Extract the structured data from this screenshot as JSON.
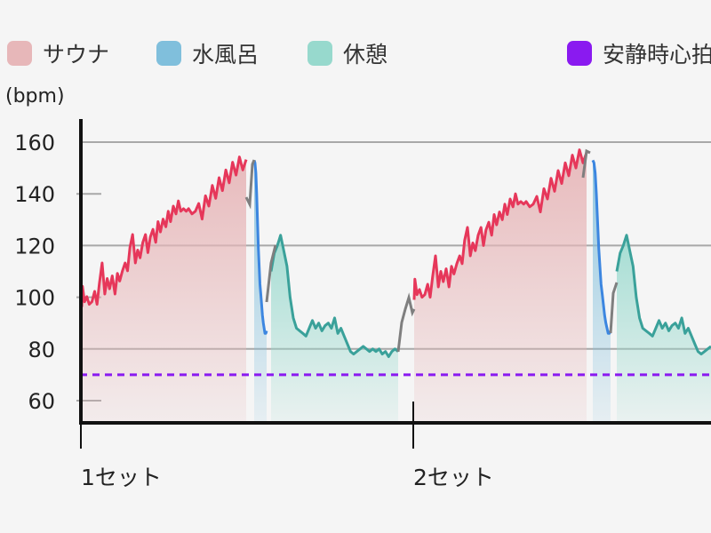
{
  "legend": [
    {
      "label": "サウナ",
      "color": "#e7b7b9"
    },
    {
      "label": "水風呂",
      "color": "#80bfdc"
    },
    {
      "label": "休憩",
      "color": "#97d9cd"
    },
    {
      "label": "安静時心拍",
      "color": "#8a1af0"
    }
  ],
  "chart_data": {
    "type": "line",
    "ylabel": "(bpm)",
    "ylim": [
      50,
      165
    ],
    "yticks": [
      60,
      80,
      100,
      120,
      140,
      160
    ],
    "x_categories": [
      "1セット",
      "2セット"
    ],
    "grid": true,
    "resting_heart_rate": 70,
    "series": [
      {
        "name": "サウナ",
        "color": "#e6375a",
        "fill": "#e7b7b9",
        "x": [
          0,
          0.2,
          0.8,
          1.5,
          2.2,
          3,
          3.8,
          4.5,
          5.2,
          6,
          6.8,
          7.5,
          8.2,
          9,
          9.8,
          10.5,
          11.2,
          12,
          12.8,
          13.5,
          14.2,
          15,
          15.8,
          16.5,
          17.2,
          18,
          18.8,
          19.5,
          20.2,
          21,
          21.8,
          22.5,
          23.2,
          24,
          24.8,
          25.5,
          26.2,
          27,
          27.8,
          28.5,
          29.2,
          30,
          30.8,
          31.5,
          32.5,
          33.5,
          34.5,
          35.5,
          36.5,
          37.5,
          38.5,
          39.5,
          40.5,
          41.5,
          42.5,
          43.5,
          44.5,
          45.5,
          46.5,
          47.5,
          48.5
        ],
        "y": [
          99,
          107,
          101,
          103,
          100,
          101,
          105,
          100,
          108,
          116,
          104,
          110,
          106,
          111,
          104,
          112,
          109,
          113,
          116,
          113,
          122,
          127,
          116,
          121,
          118,
          124,
          127,
          120,
          126,
          129,
          124,
          132,
          128,
          133,
          130,
          136,
          132,
          138,
          135,
          140,
          136,
          137,
          136,
          137,
          135,
          136,
          139,
          133,
          142,
          138,
          146,
          141,
          149,
          144,
          152,
          147,
          155,
          150,
          157,
          152,
          156
        ]
      },
      {
        "name": "水風呂",
        "color": "#3c86e0",
        "fill": "#80bfdc",
        "x": [
          0,
          1.2,
          2.4,
          3.6,
          4.8,
          6,
          7.2,
          8.4,
          9.6,
          10.8,
          12,
          13.2,
          14.4,
          15.6,
          16.8,
          18
        ],
        "y": [
          153,
          152,
          148,
          140,
          130,
          119,
          112,
          105,
          101,
          97,
          93,
          90,
          88,
          86,
          86,
          87
        ]
      },
      {
        "name": "休憩",
        "color": "#3aa19a",
        "fill": "#97d9cd",
        "x": [
          0,
          2,
          4,
          6,
          8,
          10,
          12,
          14,
          16,
          18,
          20,
          22,
          24,
          26,
          28,
          30,
          32,
          34,
          36,
          38,
          40,
          42,
          44,
          46,
          48,
          50,
          52,
          54,
          56,
          58,
          60,
          62,
          64,
          66,
          68,
          70,
          72,
          74,
          76,
          78,
          80
        ],
        "y": [
          110,
          117,
          120,
          124,
          118,
          112,
          100,
          92,
          88,
          87,
          86,
          85,
          88,
          91,
          88,
          90,
          87,
          89,
          90,
          88,
          92,
          86,
          88,
          85,
          82,
          79,
          78,
          79,
          80,
          81,
          80,
          79,
          80,
          79,
          80,
          78,
          79,
          77,
          79,
          80,
          79
        ]
      }
    ]
  }
}
